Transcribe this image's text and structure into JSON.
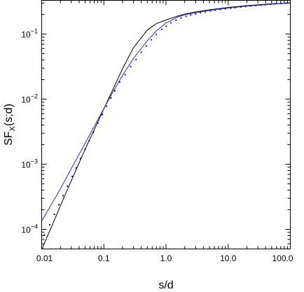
{
  "chart_data": {
    "type": "line",
    "title": "",
    "xlabel": "s/d",
    "ylabel": "SF",
    "ylabel_sub": "X",
    "ylabel_suffix": "(s;d)",
    "xscale": "log",
    "yscale": "log",
    "xlim": [
      0.01,
      100
    ],
    "ylim": [
      5e-05,
      0.33
    ],
    "grid": false,
    "legend": "none",
    "x_ticks": [
      {
        "value": 0.01,
        "label": "0.01"
      },
      {
        "value": 0.1,
        "label": "0.1"
      },
      {
        "value": 1,
        "label": "1.0"
      },
      {
        "value": 10,
        "label": "10.0"
      },
      {
        "value": 100,
        "label": "100.0"
      }
    ],
    "y_ticks": [
      {
        "value": 0.0001,
        "mantissa": "10",
        "exp": "−4"
      },
      {
        "value": 0.001,
        "mantissa": "10",
        "exp": "−3"
      },
      {
        "value": 0.01,
        "mantissa": "10",
        "exp": "−2"
      },
      {
        "value": 0.1,
        "mantissa": "10",
        "exp": "−1"
      }
    ],
    "series": [
      {
        "style": "line",
        "color": "#000000",
        "x": [
          0.0101,
          0.015,
          0.02,
          0.03,
          0.05,
          0.07,
          0.1,
          0.15,
          0.2,
          0.3,
          0.5,
          0.7,
          1.0,
          1.5,
          2,
          3,
          5,
          10,
          20,
          50,
          100
        ],
        "y": [
          5e-05,
          0.00012,
          0.00023,
          0.00056,
          0.0017,
          0.0034,
          0.0071,
          0.0163,
          0.0294,
          0.062,
          0.115,
          0.145,
          0.165,
          0.188,
          0.203,
          0.219,
          0.236,
          0.257,
          0.274,
          0.292,
          0.302
        ]
      },
      {
        "style": "line",
        "color": "#2b2bd9",
        "x": [
          0.0101,
          0.015,
          0.02,
          0.03,
          0.05,
          0.07,
          0.1,
          0.15,
          0.2,
          0.3,
          0.5,
          0.7,
          1.0,
          1.5,
          2,
          3,
          5,
          10,
          20,
          50,
          100
        ],
        "y": [
          0.000137,
          0.00026,
          0.00042,
          0.00086,
          0.0021,
          0.0038,
          0.0072,
          0.0145,
          0.0232,
          0.0425,
          0.079,
          0.112,
          0.148,
          0.181,
          0.197,
          0.213,
          0.231,
          0.252,
          0.269,
          0.288,
          0.301
        ]
      },
      {
        "style": "points",
        "color": "#000000",
        "x": [
          0.011,
          0.0135,
          0.016,
          0.019,
          0.022,
          0.026,
          0.031,
          0.036,
          0.042,
          0.05,
          0.058,
          0.068,
          0.08,
          0.094,
          0.11,
          0.13,
          0.15,
          0.18
        ],
        "y": [
          8.2e-05,
          0.000118,
          0.00017,
          0.00024,
          0.00033,
          0.00046,
          0.00065,
          0.00088,
          0.00122,
          0.0017,
          0.0023,
          0.0031,
          0.0043,
          0.0058,
          0.0078,
          0.0104,
          0.0135,
          0.0184
        ]
      },
      {
        "style": "points",
        "color": "#1a1a8c",
        "x": [
          0.22,
          0.27,
          0.33,
          0.4,
          0.48,
          0.58,
          0.7,
          0.85,
          1.0,
          1.2,
          1.45,
          1.75,
          2.1,
          2.5,
          3.0,
          3.6,
          4.3,
          5.2,
          6.2,
          7.5,
          9,
          11,
          13,
          16,
          19,
          23,
          28,
          34,
          40,
          48,
          58,
          70,
          85,
          100
        ],
        "y": [
          0.0237,
          0.0316,
          0.0408,
          0.0526,
          0.0656,
          0.0818,
          0.099,
          0.118,
          0.132,
          0.149,
          0.164,
          0.176,
          0.187,
          0.196,
          0.205,
          0.213,
          0.22,
          0.227,
          0.233,
          0.239,
          0.244,
          0.25,
          0.255,
          0.26,
          0.265,
          0.27,
          0.275,
          0.279,
          0.283,
          0.287,
          0.291,
          0.294,
          0.297,
          0.299
        ]
      }
    ]
  }
}
